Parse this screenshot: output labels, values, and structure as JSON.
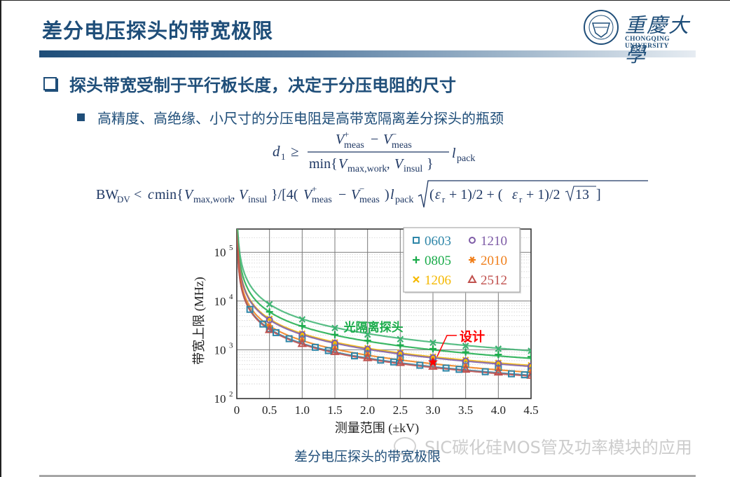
{
  "slide": {
    "title": "差分电压探头的带宽极限",
    "logo": {
      "cn": "重慶大學",
      "en": "CHONGQING UNIVERSITY"
    },
    "bullet_main": "探头带宽受制于平行板长度，决定于分压电阻的尺寸",
    "bullet_sub": "高精度、高绝缘、小尺寸的分压电阻是高带宽隔离差分探头的瓶颈",
    "formula1": "d₁ ≥ (V⁺meas − V⁻meas) / min{Vmax,work, Vinsul} · lpack",
    "formula2": "BW_DV < c·min{Vmax,work, Vinsul}/[4(V⁺meas − V⁻meas)lpack·√((εr + 1)/2 + (εr + 1)/2√13)]",
    "caption": "差分电压探头的带宽极限",
    "watermark": "SIC碳化硅MOS管及功率模块的应用"
  },
  "chart_data": {
    "type": "line",
    "title": "差分电压探头的带宽极限",
    "xlabel": "测量范围 (±kV)",
    "ylabel": "带宽上限 (MHz)",
    "xlim": [
      0,
      4.5
    ],
    "ylim": [
      100,
      300000
    ],
    "yscale": "log",
    "x_ticks": [
      "0",
      "0.5",
      "1.0",
      "1.5",
      "2.0",
      "2.5",
      "3.0",
      "3.5",
      "4.0",
      "4.5"
    ],
    "y_ticks": [
      "10^2",
      "10^3",
      "10^4",
      "10^5"
    ],
    "grid": true,
    "legend_position": "upper right",
    "x": [
      0.5,
      1.0,
      1.5,
      2.0,
      2.5,
      3.0,
      3.5,
      4.0,
      4.5
    ],
    "series": [
      {
        "name": "0603",
        "marker": "square",
        "color": "#2e86a8",
        "values": [
          2700,
          1700,
          1150,
          850,
          680,
          570,
          500,
          430,
          390
        ]
      },
      {
        "name": "0805",
        "marker": "plus",
        "color": "#1aab4a",
        "values": [
          6000,
          3100,
          2050,
          1550,
          1250,
          1050,
          900,
          800,
          720
        ]
      },
      {
        "name": "1206",
        "marker": "x",
        "color": "#f5b800",
        "values": [
          4300,
          2150,
          1420,
          1080,
          870,
          720,
          620,
          540,
          480
        ]
      },
      {
        "name": "1210",
        "marker": "circle",
        "color": "#7d5ba6",
        "values": [
          4100,
          2050,
          1370,
          1030,
          830,
          690,
          590,
          520,
          460
        ]
      },
      {
        "name": "2010",
        "marker": "asterisk",
        "color": "#f07f1a",
        "values": [
          3100,
          1600,
          1070,
          800,
          640,
          540,
          460,
          400,
          360
        ]
      },
      {
        "name": "2512",
        "marker": "triangle",
        "color": "#c0504d",
        "values": [
          2600,
          1350,
          920,
          690,
          550,
          460,
          400,
          350,
          300
        ]
      },
      {
        "name": "光隔离探头",
        "marker": "x",
        "color": "#3cb371",
        "values": [
          8600,
          4200,
          2800,
          2050,
          1650,
          1400,
          1200,
          1050,
          950
        ]
      }
    ],
    "annotations": [
      {
        "text": "光隔离探头",
        "color": "#1aab4a",
        "x": 1.7,
        "y": 2200
      },
      {
        "text": "设计",
        "color": "#ff0000",
        "x": 3.0,
        "y": 560,
        "marker": "star"
      }
    ]
  }
}
